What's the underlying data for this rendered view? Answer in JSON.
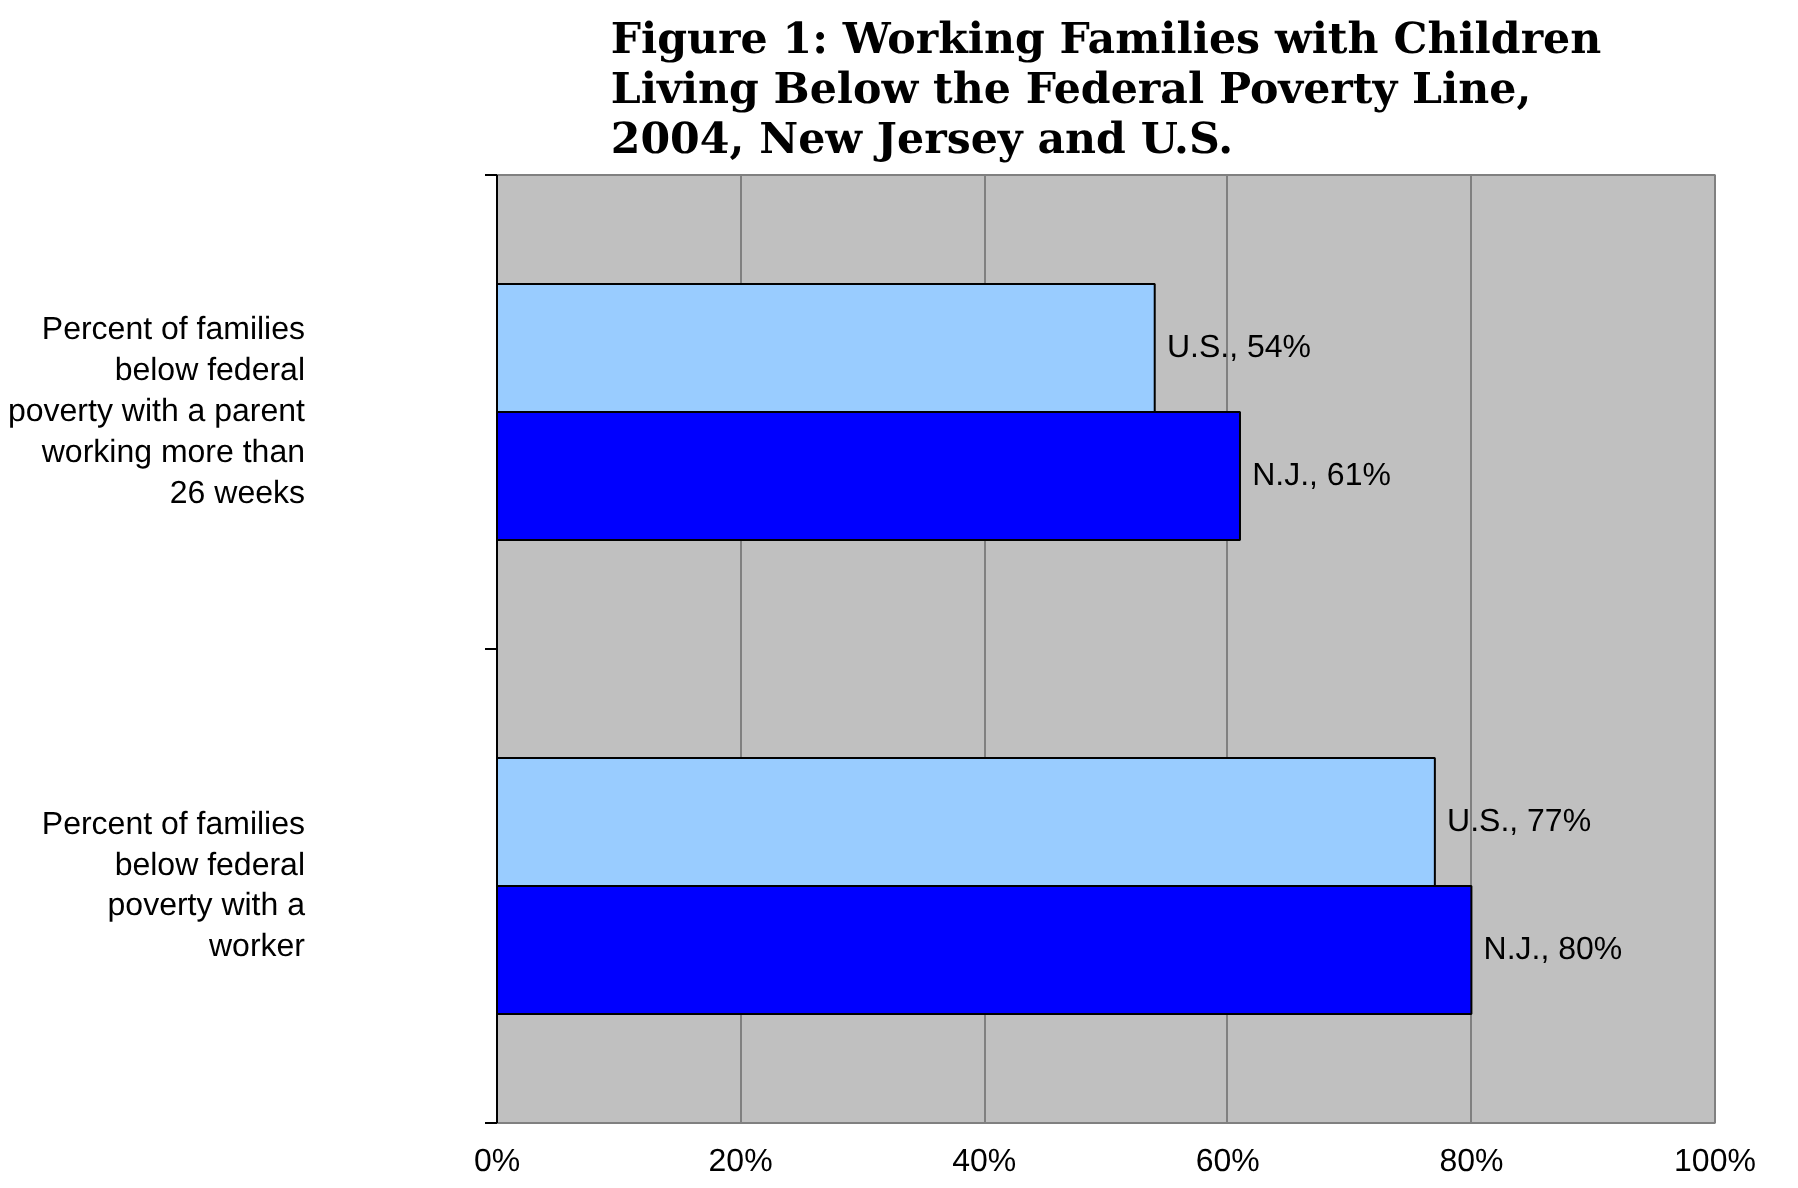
{
  "chart_data": {
    "type": "bar",
    "orientation": "horizontal",
    "title": "Figure 1: Working Families with Children\nLiving Below the Federal Poverty Line,\n2004, New Jersey and U.S.",
    "categories": [
      "Percent of families\nbelow federal\npoverty with a parent\nworking more than\n26 weeks",
      "Percent of families\nbelow federal\npoverty with a\nworker"
    ],
    "series": [
      {
        "color": "#99ccff",
        "values": [
          54,
          77
        ],
        "value_labels": [
          "U.S., 54%",
          "U.S., 77%"
        ]
      },
      {
        "color": "#0000ff",
        "values": [
          61,
          80
        ],
        "value_labels": [
          "N.J., 61%",
          "N.J., 80%"
        ]
      }
    ],
    "xlim": [
      0,
      100
    ],
    "xticks": [
      {
        "value": 0,
        "label": "0%"
      },
      {
        "value": 20,
        "label": "20%"
      },
      {
        "value": 40,
        "label": "40%"
      },
      {
        "value": 60,
        "label": "60%"
      },
      {
        "value": 80,
        "label": "80%"
      },
      {
        "value": 100,
        "label": "100%"
      }
    ],
    "grid": "x"
  }
}
